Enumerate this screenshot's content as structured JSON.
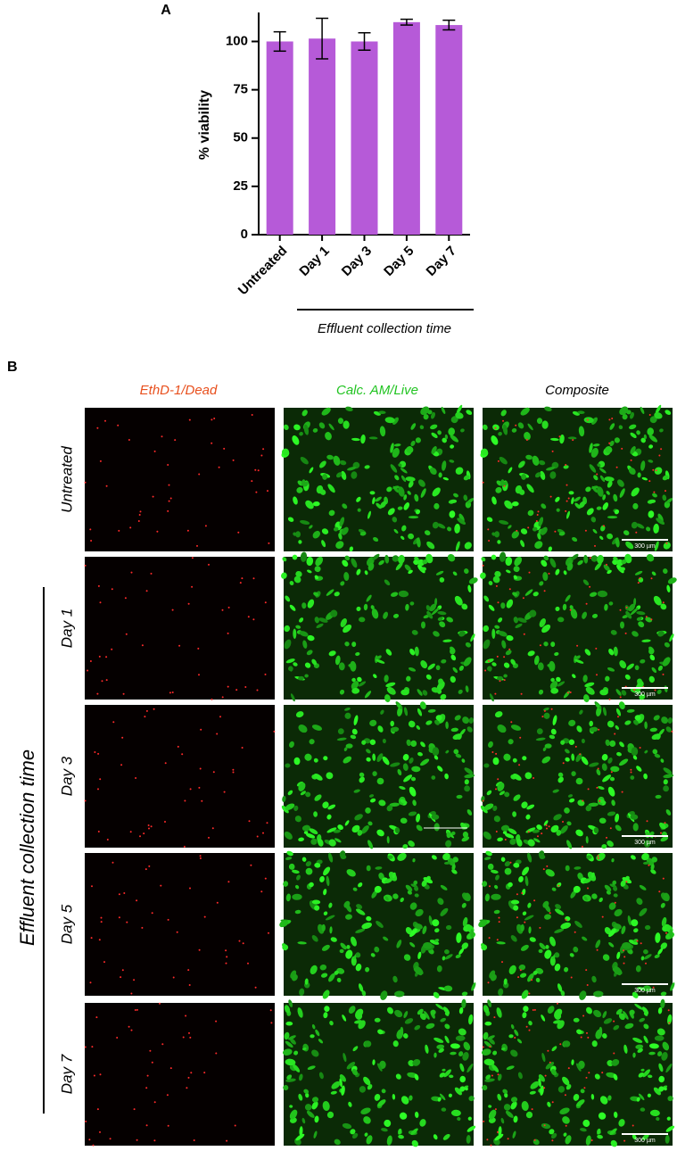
{
  "chart_data": {
    "type": "bar",
    "panel_label": "A",
    "ylabel": "% viability",
    "categories": [
      "Untreated",
      "Day 1",
      "Day 3",
      "Day 5",
      "Day 7"
    ],
    "values": [
      100,
      101.5,
      100,
      110,
      108.5
    ],
    "errors": [
      5,
      10.5,
      4.5,
      1.5,
      2.5
    ],
    "color": "#b65ad8",
    "ylim": [
      0,
      115
    ],
    "yticks": [
      0,
      25,
      50,
      75,
      100
    ],
    "group_label": "Effluent collection time"
  },
  "panel_b": {
    "panel_label": "B",
    "column_headers": [
      "EthD-1/Dead",
      "Calc. AM/Live",
      "Composite"
    ],
    "row_labels": [
      "Untreated",
      "Day 1",
      "Day 3",
      "Day 5",
      "Day 7"
    ],
    "side_label": "Effluent collection time",
    "scale_bar_labels": [
      "300 µm",
      "300 µm",
      "300 µm",
      "300 µm",
      "300 µm"
    ]
  }
}
